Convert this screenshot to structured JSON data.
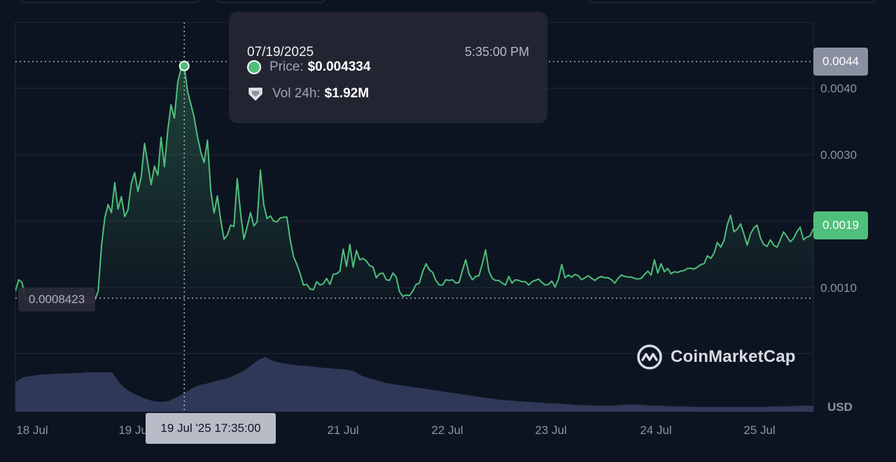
{
  "tooltip": {
    "date": "07/19/2025",
    "time": "5:35:00 PM",
    "price_label": "Price:",
    "price_value": "$0.004334",
    "vol_label": "Vol 24h:",
    "vol_value": "$1.92M",
    "price_color": "#4fbf7b"
  },
  "cursor_label": "19 Jul '25 17:35:00",
  "currency": "USD",
  "brand": "CoinMarketCap",
  "tags": {
    "max": "0.0044",
    "current": "0.0019",
    "min": "0.0008423"
  },
  "colors": {
    "up": "#4fbf7b",
    "down": "#e15241",
    "volume": "#323a5b",
    "background": "#0d1421",
    "grid": "#222938"
  },
  "chart_data": {
    "type": "line",
    "title": "",
    "xlabel": "",
    "ylabel": "",
    "x_ticks": [
      "18 Jul",
      "19 Jul",
      "21 Jul",
      "22 Jul",
      "23 Jul",
      "24 Jul",
      "25 Jul"
    ],
    "y_ticks": [
      "0.0010",
      "0.0030",
      "0.0040"
    ],
    "ylim": [
      0.0,
      0.0045
    ],
    "baseline": 0.0008423,
    "max_marker": 0.004334,
    "series": [
      {
        "values": [
          0.00095,
          0.00112,
          0.00108,
          0.00082,
          0.00078,
          0.00076,
          0.0008,
          0.00078,
          0.00085,
          0.00079,
          0.00083,
          0.00082,
          0.00083,
          0.00078,
          0.00084,
          0.00076,
          0.00078,
          0.00076,
          0.00081,
          0.00078,
          0.00079,
          0.00077,
          0.00078,
          0.00077,
          0.00082,
          0.00095,
          0.00163,
          0.00205,
          0.00225,
          0.00213,
          0.00258,
          0.00218,
          0.00237,
          0.00207,
          0.00217,
          0.00257,
          0.00273,
          0.00245,
          0.00267,
          0.00317,
          0.00286,
          0.00255,
          0.00283,
          0.00269,
          0.00326,
          0.00282,
          0.00336,
          0.00375,
          0.00355,
          0.00408,
          0.00429,
          0.00433,
          0.00395,
          0.00376,
          0.00356,
          0.00327,
          0.00304,
          0.00288,
          0.00322,
          0.00246,
          0.00212,
          0.00238,
          0.00202,
          0.00173,
          0.00179,
          0.00194,
          0.00192,
          0.00264,
          0.00212,
          0.00173,
          0.00192,
          0.00213,
          0.00193,
          0.00199,
          0.00277,
          0.00225,
          0.00204,
          0.00208,
          0.002,
          0.00199,
          0.00205,
          0.00206,
          0.00206,
          0.00172,
          0.00147,
          0.00135,
          0.00121,
          0.00104,
          0.00105,
          0.00098,
          0.00097,
          0.00109,
          0.00104,
          0.00106,
          0.00114,
          0.00105,
          0.0012,
          0.00121,
          0.00125,
          0.00158,
          0.00132,
          0.00165,
          0.00131,
          0.00156,
          0.00142,
          0.00144,
          0.0014,
          0.00133,
          0.00131,
          0.00115,
          0.00121,
          0.00122,
          0.00112,
          0.00111,
          0.00122,
          0.00116,
          0.00094,
          0.00087,
          0.00089,
          0.00088,
          0.00095,
          0.00105,
          0.00107,
          0.00124,
          0.00136,
          0.00127,
          0.00123,
          0.00111,
          0.00104,
          0.00104,
          0.00112,
          0.00111,
          0.00112,
          0.00107,
          0.00108,
          0.00126,
          0.00142,
          0.00121,
          0.00112,
          0.00117,
          0.00118,
          0.00136,
          0.00157,
          0.00125,
          0.00114,
          0.00111,
          0.00111,
          0.00107,
          0.00104,
          0.00117,
          0.00107,
          0.00112,
          0.00111,
          0.00109,
          0.00109,
          0.00104,
          0.00109,
          0.00111,
          0.00113,
          0.00108,
          0.00104,
          0.00105,
          0.0011,
          0.00101,
          0.00113,
          0.00135,
          0.00115,
          0.00119,
          0.00116,
          0.0012,
          0.00118,
          0.00112,
          0.00115,
          0.00118,
          0.00114,
          0.00111,
          0.00115,
          0.00117,
          0.00115,
          0.00115,
          0.00112,
          0.00107,
          0.00114,
          0.00119,
          0.00117,
          0.00116,
          0.00116,
          0.00114,
          0.00113,
          0.00114,
          0.0012,
          0.00125,
          0.00119,
          0.00142,
          0.00122,
          0.00136,
          0.00124,
          0.00129,
          0.00121,
          0.00124,
          0.00123,
          0.00125,
          0.00126,
          0.00129,
          0.00129,
          0.00128,
          0.00131,
          0.00135,
          0.00136,
          0.00148,
          0.00144,
          0.00152,
          0.00168,
          0.00161,
          0.00171,
          0.00195,
          0.00209,
          0.00184,
          0.00188,
          0.00196,
          0.00181,
          0.00164,
          0.00181,
          0.0019,
          0.00194,
          0.00175,
          0.00165,
          0.00162,
          0.00172,
          0.00164,
          0.00161,
          0.00172,
          0.00184,
          0.00177,
          0.00169,
          0.00174,
          0.00184,
          0.00191,
          0.00172,
          0.00176,
          0.00178,
          0.00189
        ]
      }
    ],
    "volume": [
      0.5,
      0.58,
      0.6,
      0.62,
      0.63,
      0.64,
      0.64,
      0.65,
      0.65,
      0.66,
      0.66,
      0.66,
      0.66,
      0.47,
      0.35,
      0.28,
      0.22,
      0.18,
      0.16,
      0.18,
      0.24,
      0.32,
      0.4,
      0.45,
      0.48,
      0.52,
      0.55,
      0.6,
      0.66,
      0.75,
      0.86,
      0.92,
      0.85,
      0.82,
      0.8,
      0.78,
      0.77,
      0.76,
      0.74,
      0.73,
      0.72,
      0.71,
      0.68,
      0.6,
      0.56,
      0.52,
      0.48,
      0.46,
      0.44,
      0.42,
      0.4,
      0.38,
      0.36,
      0.34,
      0.32,
      0.3,
      0.28,
      0.26,
      0.24,
      0.22,
      0.2,
      0.19,
      0.18,
      0.17,
      0.16,
      0.15,
      0.14,
      0.14,
      0.13,
      0.12,
      0.11,
      0.11,
      0.1,
      0.1,
      0.1,
      0.11,
      0.12,
      0.12,
      0.11,
      0.1,
      0.1,
      0.09,
      0.09,
      0.09,
      0.08,
      0.08,
      0.08,
      0.08,
      0.08,
      0.08,
      0.08,
      0.08,
      0.08,
      0.08,
      0.09,
      0.09,
      0.09,
      0.1,
      0.1,
      0.1
    ]
  }
}
